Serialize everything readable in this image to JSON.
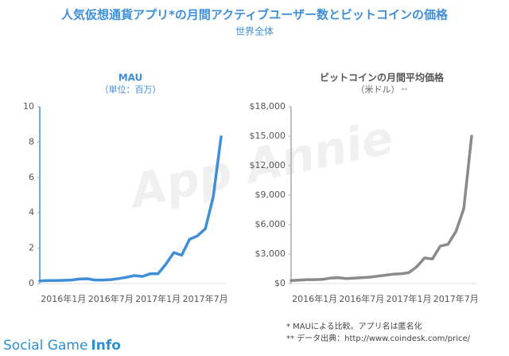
{
  "title": "人気仮想通貨アプリ*の月間アクティブユーザー数とビットコインの価格",
  "subtitle": "世界全体",
  "watermark": "App Annie",
  "chart_data": [
    {
      "type": "line",
      "title": "MAU",
      "subtitle": "（単位：百万）",
      "categories": [
        null,
        null,
        null,
        "2016年1月",
        null,
        null,
        null,
        null,
        null,
        "2016年7月",
        null,
        null,
        null,
        null,
        null,
        "2017年1月",
        null,
        null,
        null,
        null,
        null,
        "2017年7月",
        null,
        null
      ],
      "series": [
        {
          "name": "MAU",
          "color": "#3f8fd8",
          "values": [
            0.15,
            0.17,
            0.17,
            0.18,
            0.2,
            0.25,
            0.27,
            0.2,
            0.2,
            0.22,
            0.28,
            0.35,
            0.45,
            0.4,
            0.55,
            0.55,
            1.1,
            1.75,
            1.6,
            2.5,
            2.7,
            3.1,
            4.9,
            8.3
          ]
        }
      ],
      "ylim": [
        0,
        10
      ],
      "yticks": [
        0,
        2,
        4,
        6,
        8,
        10
      ],
      "grid": false
    },
    {
      "type": "line",
      "title": "ビットコインの月間平均価格",
      "subtitle": "（米ドル）",
      "subtitle_mark": "**",
      "categories": [
        null,
        null,
        null,
        "2016年1月",
        null,
        null,
        null,
        null,
        null,
        "2016年7月",
        null,
        null,
        null,
        null,
        null,
        "2017年1月",
        null,
        null,
        null,
        null,
        null,
        "2017年7月",
        null,
        null
      ],
      "series": [
        {
          "name": "ビットコイン",
          "color": "#8a8a8a",
          "values": [
            300,
            350,
            400,
            400,
            420,
            550,
            600,
            500,
            550,
            600,
            650,
            750,
            850,
            950,
            1000,
            1100,
            1700,
            2600,
            2500,
            3800,
            4000,
            5300,
            7600,
            15000
          ]
        }
      ],
      "ylim": [
        0,
        18000
      ],
      "yticks": [
        {
          "value": 0,
          "label": "$0"
        },
        {
          "value": 3000,
          "label": "$3,000"
        },
        {
          "value": 6000,
          "label": "$6,000"
        },
        {
          "value": 9000,
          "label": "$9,000"
        },
        {
          "value": 12000,
          "label": "$12,000"
        },
        {
          "value": 15000,
          "label": "$15,000"
        },
        {
          "value": 18000,
          "label": "$18,000"
        }
      ],
      "grid": false
    }
  ],
  "footnotes": [
    "* MAUによる比較。アプリ名は匿名化",
    "** データ出典：http://www.coindesk.com/price/"
  ],
  "brand": [
    "Social Game",
    "Info"
  ]
}
